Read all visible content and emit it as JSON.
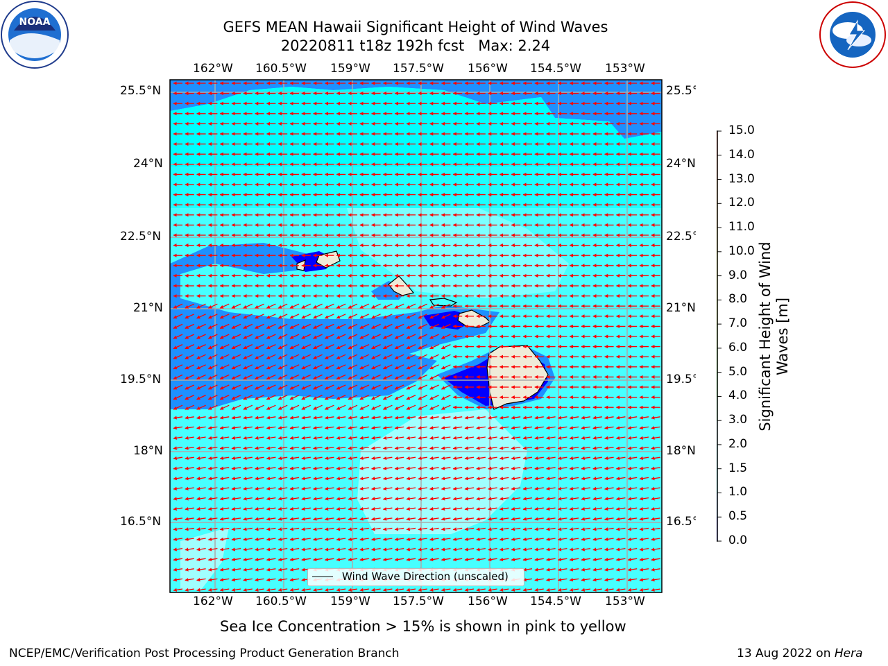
{
  "header": {
    "title_line1": "GEFS MEAN Hawaii Significant Height of Wind Waves",
    "title_line2": "20220811 t18z 192h fcst   Max: 2.24"
  },
  "logos": {
    "noaa": {
      "text": "NOAA",
      "ring_text": "NATIONAL OCEANIC AND ATMOSPHERIC ADMINISTRATION · U.S. DEPARTMENT OF COMMERCE"
    },
    "nws": {
      "ring_text": "NATIONAL WEATHER SERVICE"
    }
  },
  "map": {
    "lon_labels": [
      "162°W",
      "160.5°W",
      "159°W",
      "157.5°W",
      "156°W",
      "154.5°W",
      "153°W"
    ],
    "lat_labels": [
      "25.5°N",
      "24°N",
      "22.5°N",
      "21°N",
      "19.5°N",
      "18°N",
      "16.5°N"
    ],
    "lon_range": [
      -163.0,
      -152.2
    ],
    "lat_range": [
      15.2,
      25.8
    ],
    "vector_color": "#ff0000",
    "vector_direction": "from east (westward)",
    "legend_label": "Wind Wave Direction (unscaled)"
  },
  "colorbar": {
    "title_line1": "Significant Height of Wind",
    "title_line2": "Waves [m]",
    "levels": [
      "0.0",
      "0.5",
      "1.0",
      "1.5",
      "2.0",
      "3.0",
      "4.0",
      "5.0",
      "6.0",
      "7.0",
      "8.0",
      "9.0",
      "10.0",
      "11.0",
      "12.0",
      "13.0",
      "14.0",
      "15.0"
    ],
    "colors": [
      "#0000ff",
      "#1e90ff",
      "#00ffff",
      "#47ffff",
      "#a0ffff",
      "#55ff77",
      "#00dd00",
      "#44ee00",
      "#88ee00",
      "#ccff00",
      "#eeff00",
      "#ffff00",
      "#ffd700",
      "#ffa500",
      "#ff8c00",
      "#ff5500",
      "#ff2000"
    ]
  },
  "captions": {
    "sea_ice": "Sea Ice Concentration > 15% is shown in pink to yellow",
    "footer_left": "NCEP/EMC/Verification Post Processing Product Generation Branch",
    "footer_right_prefix": "13 Aug 2022 on ",
    "footer_right_host": "Hera"
  },
  "chart_data": {
    "type": "heatmap",
    "variable": "Significant Height of Wind Waves",
    "units": "m",
    "max_value": 2.24,
    "forecast": "20220811 t18z 192h fcst",
    "colorbar_range": [
      0.0,
      15.0
    ]
  }
}
